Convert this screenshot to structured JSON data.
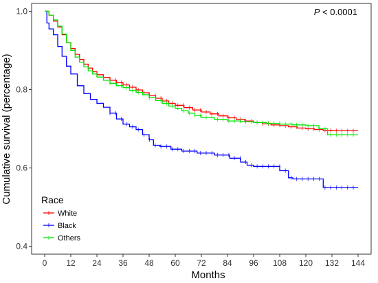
{
  "chart_data": {
    "type": "line",
    "step": true,
    "title": "",
    "xlabel": "Months",
    "ylabel": "Cumulative survival (percentage)",
    "xlim": [
      -6,
      150
    ],
    "ylim": [
      0.38,
      1.02
    ],
    "xticks": [
      0,
      12,
      24,
      36,
      48,
      60,
      72,
      84,
      96,
      108,
      120,
      132,
      144
    ],
    "yticks": [
      0.4,
      0.6,
      0.8,
      1.0
    ],
    "ytick_labels": [
      "0.4",
      "0.6",
      "0.8",
      "1.0"
    ],
    "grid": false,
    "legend": {
      "title": "Race",
      "position": "bottom-left"
    },
    "annotation": {
      "p_symbol": "P",
      "p_rest": " < 0.0001"
    },
    "series": [
      {
        "name": "White",
        "color": "#ff0000",
        "x": [
          0,
          2,
          4,
          6,
          8,
          10,
          12,
          14,
          16,
          18,
          20,
          22,
          24,
          27,
          30,
          33,
          36,
          39,
          42,
          45,
          48,
          51,
          54,
          57,
          60,
          64,
          68,
          72,
          76,
          80,
          84,
          88,
          92,
          96,
          100,
          104,
          108,
          112,
          116,
          120,
          124,
          128,
          132,
          144
        ],
        "y": [
          1.0,
          0.99,
          0.975,
          0.96,
          0.94,
          0.92,
          0.905,
          0.89,
          0.877,
          0.865,
          0.855,
          0.846,
          0.838,
          0.831,
          0.824,
          0.818,
          0.812,
          0.806,
          0.799,
          0.792,
          0.785,
          0.778,
          0.771,
          0.765,
          0.76,
          0.754,
          0.748,
          0.743,
          0.738,
          0.733,
          0.728,
          0.724,
          0.72,
          0.716,
          0.713,
          0.71,
          0.708,
          0.705,
          0.702,
          0.7,
          0.698,
          0.696,
          0.695,
          0.695
        ]
      },
      {
        "name": "Black",
        "color": "#0000ff",
        "x": [
          0,
          1,
          2,
          4,
          6,
          8,
          10,
          12,
          15,
          18,
          21,
          24,
          27,
          30,
          33,
          36,
          39,
          42,
          45,
          48,
          50,
          53,
          58,
          63,
          70,
          78,
          85,
          90,
          93,
          96,
          100,
          105,
          108,
          112,
          114,
          118,
          124,
          128,
          132,
          144
        ],
        "y": [
          1.0,
          0.97,
          0.955,
          0.94,
          0.91,
          0.885,
          0.86,
          0.84,
          0.81,
          0.79,
          0.775,
          0.765,
          0.755,
          0.74,
          0.725,
          0.712,
          0.705,
          0.698,
          0.685,
          0.672,
          0.658,
          0.655,
          0.648,
          0.643,
          0.638,
          0.633,
          0.625,
          0.615,
          0.607,
          0.604,
          0.604,
          0.604,
          0.593,
          0.575,
          0.572,
          0.572,
          0.572,
          0.55,
          0.55,
          0.55
        ]
      },
      {
        "name": "Others",
        "color": "#00e600",
        "x": [
          0,
          2,
          4,
          6,
          8,
          10,
          12,
          14,
          16,
          18,
          20,
          22,
          24,
          27,
          30,
          33,
          36,
          39,
          42,
          45,
          48,
          51,
          54,
          57,
          60,
          63,
          66,
          69,
          72,
          78,
          84,
          90,
          96,
          102,
          108,
          114,
          120,
          126,
          130,
          144
        ],
        "y": [
          1.0,
          0.99,
          0.978,
          0.962,
          0.942,
          0.92,
          0.9,
          0.883,
          0.87,
          0.858,
          0.848,
          0.84,
          0.832,
          0.824,
          0.816,
          0.81,
          0.805,
          0.798,
          0.793,
          0.787,
          0.78,
          0.772,
          0.765,
          0.758,
          0.752,
          0.746,
          0.74,
          0.734,
          0.729,
          0.724,
          0.72,
          0.718,
          0.716,
          0.714,
          0.712,
          0.71,
          0.708,
          0.7,
          0.685,
          0.685
        ]
      }
    ]
  }
}
